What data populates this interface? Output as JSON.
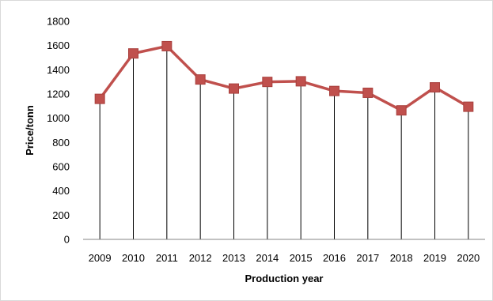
{
  "chart_data": {
    "type": "line",
    "title": "",
    "xlabel": "Production year",
    "ylabel": "Price/tonn",
    "x": [
      "2009",
      "2010",
      "2011",
      "2012",
      "2013",
      "2014",
      "2015",
      "2016",
      "2017",
      "2018",
      "2019",
      "2020"
    ],
    "series": [
      {
        "values": [
          1160,
          1535,
          1595,
          1320,
          1245,
          1300,
          1305,
          1225,
          1210,
          1065,
          1255,
          1095
        ]
      }
    ],
    "ylim": [
      0,
      1800
    ],
    "yticks": [
      0,
      200,
      400,
      600,
      800,
      1000,
      1200,
      1400,
      1600,
      1800
    ],
    "drop_lines": true,
    "grid": false,
    "legend": "none",
    "colors": {
      "series": "#c0504d",
      "marker": "#c0504d",
      "drop_line": "#000000",
      "axis": "#868686"
    }
  }
}
